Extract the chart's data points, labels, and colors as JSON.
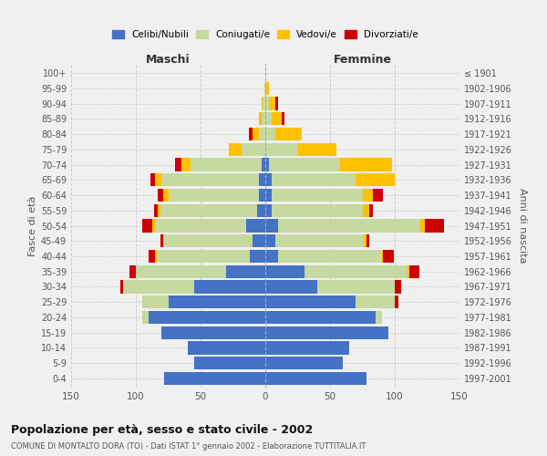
{
  "age_groups": [
    "0-4",
    "5-9",
    "10-14",
    "15-19",
    "20-24",
    "25-29",
    "30-34",
    "35-39",
    "40-44",
    "45-49",
    "50-54",
    "55-59",
    "60-64",
    "65-69",
    "70-74",
    "75-79",
    "80-84",
    "85-89",
    "90-94",
    "95-99",
    "100+"
  ],
  "birth_years": [
    "1997-2001",
    "1992-1996",
    "1987-1991",
    "1982-1986",
    "1977-1981",
    "1972-1976",
    "1967-1971",
    "1962-1966",
    "1957-1961",
    "1952-1956",
    "1947-1951",
    "1942-1946",
    "1937-1941",
    "1932-1936",
    "1927-1931",
    "1922-1926",
    "1917-1921",
    "1912-1916",
    "1907-1911",
    "1902-1906",
    "≤ 1901"
  ],
  "male": {
    "celibi": [
      78,
      55,
      60,
      80,
      90,
      75,
      55,
      30,
      12,
      10,
      15,
      6,
      5,
      5,
      3,
      0,
      0,
      0,
      0,
      0,
      0
    ],
    "coniugati": [
      0,
      0,
      0,
      0,
      5,
      20,
      55,
      70,
      72,
      68,
      70,
      75,
      70,
      75,
      55,
      18,
      5,
      3,
      2,
      1,
      0
    ],
    "vedovi": [
      0,
      0,
      0,
      0,
      0,
      0,
      0,
      0,
      1,
      1,
      2,
      2,
      4,
      5,
      7,
      10,
      5,
      2,
      1,
      0,
      0
    ],
    "divorziati": [
      0,
      0,
      0,
      0,
      0,
      0,
      2,
      5,
      5,
      2,
      8,
      3,
      4,
      4,
      5,
      0,
      3,
      0,
      0,
      0,
      0
    ]
  },
  "female": {
    "nubili": [
      78,
      60,
      65,
      95,
      85,
      70,
      40,
      30,
      10,
      8,
      10,
      5,
      5,
      5,
      3,
      0,
      0,
      0,
      0,
      0,
      0
    ],
    "coniugate": [
      0,
      0,
      0,
      0,
      5,
      30,
      60,
      80,
      80,
      68,
      110,
      70,
      70,
      65,
      55,
      25,
      8,
      5,
      3,
      1,
      0
    ],
    "vedove": [
      0,
      0,
      0,
      0,
      0,
      0,
      0,
      1,
      1,
      2,
      3,
      5,
      8,
      30,
      40,
      30,
      20,
      8,
      5,
      2,
      0
    ],
    "divorziate": [
      0,
      0,
      0,
      0,
      0,
      3,
      5,
      8,
      8,
      2,
      15,
      3,
      8,
      0,
      0,
      0,
      0,
      2,
      2,
      0,
      0
    ]
  },
  "colors": {
    "celibi": "#4472c4",
    "coniugati": "#c5d9a0",
    "vedovi": "#ffc000",
    "divorziati": "#cc0000"
  },
  "xlim": 150,
  "title": "Popolazione per età, sesso e stato civile - 2002",
  "subtitle": "COMUNE DI MONTALTO DORA (TO) - Dati ISTAT 1° gennaio 2002 - Elaborazione TUTTITALIA.IT",
  "ylabel_left": "Fasce di età",
  "ylabel_right": "Anni di nascita",
  "xlabel_left": "Maschi",
  "xlabel_right": "Femmine",
  "legend_labels": [
    "Celibi/Nubili",
    "Coniugati/e",
    "Vedovi/e",
    "Divorziati/e"
  ],
  "bg_color": "#f0f0f0",
  "plot_bg": "#f0f0f0"
}
